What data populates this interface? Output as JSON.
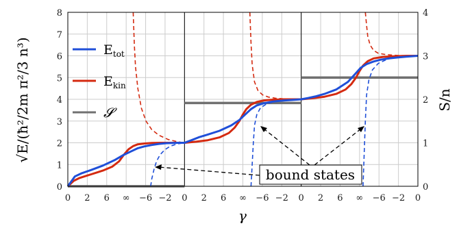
{
  "chart_data": {
    "type": "line",
    "ylabel": "√E/(ħ²/2m π²/3 n³)",
    "ylabel2": "S/n",
    "xlabel": "γ",
    "ylim": [
      0,
      8
    ],
    "y2lim": [
      0,
      4
    ],
    "yticks": [
      "0",
      "1",
      "2",
      "3",
      "4",
      "5",
      "6",
      "7",
      "8"
    ],
    "y2ticks": [
      "0",
      "1",
      "2",
      "3",
      "4"
    ],
    "xticks": [
      "0",
      "2",
      "6",
      "∞",
      "−6",
      "−2",
      "0",
      "2",
      "6",
      "∞",
      "−6",
      "−2",
      "0",
      "2",
      "6",
      "∞",
      "−6",
      "−2",
      "0"
    ],
    "grid": true,
    "legend_position": "top-left",
    "series": [
      {
        "name": "E_tot",
        "color": "#1f4fd8",
        "x": [
          0,
          0.06,
          0.12,
          0.2,
          0.3,
          0.4,
          0.47,
          0.54,
          0.6,
          0.66,
          0.72,
          0.78,
          0.84,
          0.9,
          0.95,
          1.0,
          1.06,
          1.12,
          1.2,
          1.3,
          1.4,
          1.47,
          1.52,
          1.57,
          1.62,
          1.68,
          1.74,
          1.8,
          1.86,
          1.92,
          2.0,
          2.06,
          2.12,
          2.2,
          2.3,
          2.4,
          2.46,
          2.51,
          2.56,
          2.62,
          2.68,
          2.75,
          2.82,
          2.9,
          3.0
        ],
        "y": [
          0,
          0.45,
          0.6,
          0.75,
          0.95,
          1.2,
          1.42,
          1.6,
          1.75,
          1.84,
          1.9,
          1.95,
          1.98,
          1.99,
          2.0,
          2.0,
          2.12,
          2.25,
          2.38,
          2.55,
          2.8,
          3.05,
          3.3,
          3.55,
          3.72,
          3.82,
          3.88,
          3.92,
          3.95,
          3.97,
          4.0,
          4.06,
          4.13,
          4.25,
          4.45,
          4.8,
          5.15,
          5.45,
          5.62,
          5.74,
          5.82,
          5.88,
          5.92,
          5.96,
          6.0
        ]
      },
      {
        "name": "E_kin",
        "color": "#d42a10",
        "x": [
          0,
          0.05,
          0.1,
          0.2,
          0.3,
          0.38,
          0.44,
          0.48,
          0.52,
          0.56,
          0.6,
          0.66,
          0.72,
          0.8,
          0.9,
          1.0,
          1.1,
          1.2,
          1.3,
          1.38,
          1.43,
          1.47,
          1.5,
          1.53,
          1.57,
          1.62,
          1.68,
          1.75,
          1.85,
          2.0,
          2.1,
          2.2,
          2.3,
          2.38,
          2.43,
          2.47,
          2.5,
          2.53,
          2.57,
          2.62,
          2.7,
          2.8,
          2.9,
          3.0
        ],
        "y": [
          0,
          0.25,
          0.38,
          0.55,
          0.72,
          0.9,
          1.15,
          1.45,
          1.7,
          1.85,
          1.93,
          1.97,
          1.99,
          2.0,
          2.0,
          2.0,
          2.05,
          2.12,
          2.25,
          2.45,
          2.7,
          3.0,
          3.3,
          3.55,
          3.75,
          3.88,
          3.95,
          3.98,
          4.0,
          4.0,
          4.05,
          4.12,
          4.25,
          4.45,
          4.7,
          5.0,
          5.3,
          5.55,
          5.75,
          5.88,
          5.95,
          5.98,
          6.0,
          6.0
        ]
      },
      {
        "name": "S",
        "color": "#707070",
        "segments": [
          {
            "x": [
              0,
              1
            ],
            "y": [
              0,
              0
            ]
          },
          {
            "x": [
              1,
              2
            ],
            "y": [
              3.83,
              3.83
            ]
          },
          {
            "x": [
              2,
              3
            ],
            "y": [
              5.0,
              5.0
            ]
          }
        ]
      }
    ],
    "dashed_series": [
      {
        "name": "E_kin bound",
        "color": "#d42a10",
        "x": [
          0.56,
          0.57,
          0.58,
          0.6,
          0.63,
          0.67,
          0.72,
          0.78,
          0.86,
          0.94,
          1.0,
          1.56,
          1.57,
          1.58,
          1.6,
          1.63,
          1.67,
          1.72,
          1.78,
          1.86,
          1.94,
          2.0,
          2.55,
          2.56,
          2.57,
          2.59,
          2.62,
          2.66,
          2.72,
          2.78,
          2.86,
          2.94,
          3.0
        ],
        "y": [
          8,
          6.5,
          5.5,
          4.5,
          3.6,
          3.0,
          2.6,
          2.35,
          2.15,
          2.05,
          2.0,
          8,
          6.6,
          5.6,
          4.8,
          4.4,
          4.2,
          4.1,
          4.05,
          4.02,
          4.0,
          4.0,
          8,
          7.4,
          6.9,
          6.5,
          6.25,
          6.12,
          6.06,
          6.03,
          6.01,
          6.0,
          6.0
        ],
        "breaks": [
          11,
          22
        ]
      },
      {
        "name": "E_tot bound",
        "color": "#1f4fd8",
        "x": [
          0.71,
          0.72,
          0.74,
          0.76,
          0.79,
          0.83,
          0.88,
          0.94,
          1.0,
          1.57,
          1.58,
          1.59,
          1.6,
          1.62,
          1.65,
          1.7,
          1.76,
          1.84,
          1.92,
          2.0,
          2.53,
          2.54,
          2.55,
          2.56,
          2.58,
          2.61,
          2.66,
          2.74,
          2.84,
          2.93,
          3.0
        ],
        "y": [
          0,
          0.35,
          0.8,
          1.15,
          1.45,
          1.68,
          1.85,
          1.95,
          2.0,
          0,
          1.0,
          2.0,
          2.8,
          3.3,
          3.6,
          3.78,
          3.88,
          3.95,
          3.98,
          4.0,
          0,
          1.5,
          3.0,
          4.2,
          4.9,
          5.35,
          5.65,
          5.85,
          5.95,
          5.99,
          6.0
        ],
        "breaks": [
          9,
          20
        ]
      }
    ],
    "annotations": [
      {
        "text": "bound states"
      }
    ]
  },
  "legend": {
    "items": [
      {
        "main": "E",
        "sub": "tot",
        "color": "#1f4fd8"
      },
      {
        "main": "E",
        "sub": "kin",
        "color": "#d42a10"
      },
      {
        "main": "𝓢",
        "sub": "",
        "color": "#707070"
      }
    ]
  }
}
